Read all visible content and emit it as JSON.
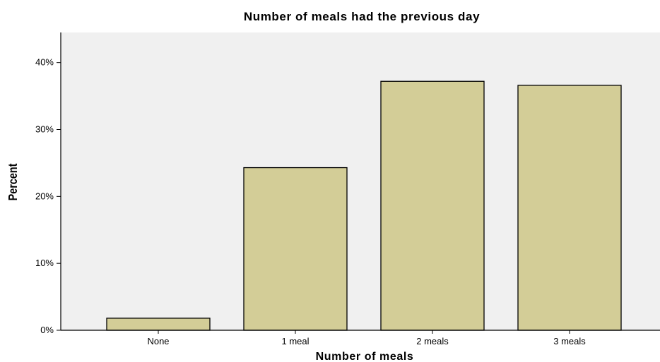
{
  "chart_data": {
    "type": "bar",
    "title": "Number of meals had the previous day",
    "xlabel": "Number of meals",
    "ylabel": "Percent",
    "categories": [
      "None",
      "1 meal",
      "2 meals",
      "3 meals"
    ],
    "values": [
      1.8,
      24.3,
      37.2,
      36.6
    ],
    "ylim": [
      0,
      44.5
    ],
    "yticks": [
      0,
      10,
      20,
      30,
      40
    ],
    "ytick_labels": [
      "0%",
      "10%",
      "20%",
      "30%",
      "40%"
    ],
    "grid": false,
    "legend": "none",
    "colors": {
      "bar_fill": "#d3cd97",
      "bar_stroke": "#000000",
      "plot_background": "#f0f0f0"
    }
  }
}
